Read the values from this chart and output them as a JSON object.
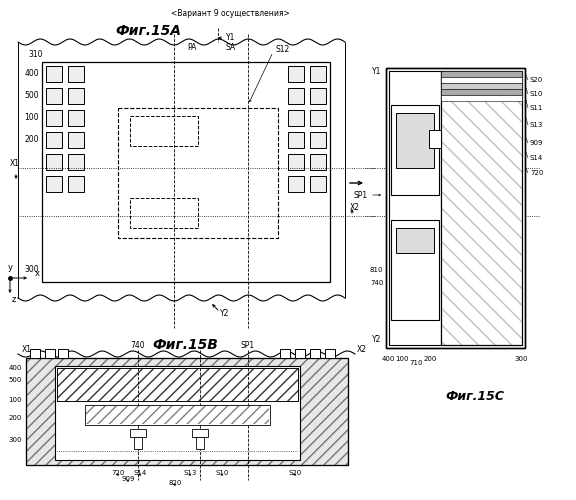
{
  "title_variant": "<Вариант 9 осуществления>",
  "fig15a_title": "Фиг.15А",
  "fig15b_title": "Фиг.15В",
  "fig15c_title": "Фиг.15С",
  "bg_color": "#ffffff"
}
